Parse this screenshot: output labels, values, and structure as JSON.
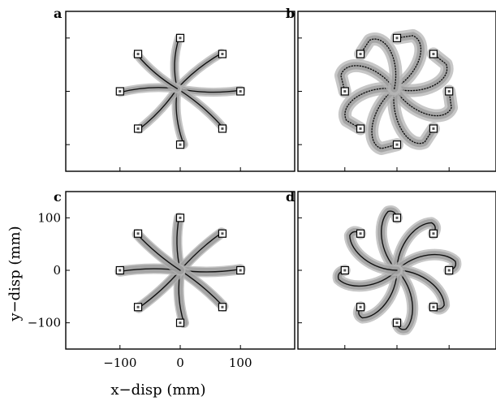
{
  "chart_data": [
    {
      "panel": "a",
      "type": "line",
      "variant": "baseline",
      "xlim": [
        -190,
        190
      ],
      "ylim": [
        -150,
        150
      ],
      "show_ticks": false,
      "center": [
        -5,
        5
      ],
      "targets": [
        {
          "x": 0,
          "y": 100
        },
        {
          "x": 70,
          "y": 70
        },
        {
          "x": 100,
          "y": 0
        },
        {
          "x": 70,
          "y": -70
        },
        {
          "x": 0,
          "y": -100
        },
        {
          "x": -70,
          "y": -70
        },
        {
          "x": -100,
          "y": 0
        },
        {
          "x": -70,
          "y": 70
        }
      ]
    },
    {
      "panel": "b",
      "type": "line",
      "variant": "force-field-initial",
      "xlim": [
        -190,
        190
      ],
      "ylim": [
        -150,
        150
      ],
      "show_ticks": false,
      "center": [
        -5,
        5
      ],
      "targets": [
        {
          "x": 0,
          "y": 100
        },
        {
          "x": 70,
          "y": 70
        },
        {
          "x": 100,
          "y": 0
        },
        {
          "x": 70,
          "y": -70
        },
        {
          "x": 0,
          "y": -100
        },
        {
          "x": -70,
          "y": -70
        },
        {
          "x": -100,
          "y": 0
        },
        {
          "x": -70,
          "y": 70
        }
      ]
    },
    {
      "panel": "c",
      "type": "line",
      "variant": "after-learning",
      "xlim": [
        -190,
        190
      ],
      "ylim": [
        -150,
        150
      ],
      "show_ticks": true,
      "xticks": [
        -100,
        0,
        100
      ],
      "yticks": [
        -100,
        0,
        100
      ],
      "xlabel": "x−disp (mm)",
      "ylabel": "y−disp (mm)",
      "center": [
        0,
        0
      ],
      "targets": [
        {
          "x": 0,
          "y": 100
        },
        {
          "x": 70,
          "y": 70
        },
        {
          "x": 100,
          "y": 0
        },
        {
          "x": 70,
          "y": -70
        },
        {
          "x": 0,
          "y": -100
        },
        {
          "x": -70,
          "y": -70
        },
        {
          "x": -100,
          "y": 0
        },
        {
          "x": -70,
          "y": 70
        }
      ]
    },
    {
      "panel": "d",
      "type": "line",
      "variant": "after-effect",
      "xlim": [
        -190,
        190
      ],
      "ylim": [
        -150,
        150
      ],
      "show_ticks": false,
      "center": [
        0,
        0
      ],
      "targets": [
        {
          "x": 0,
          "y": 100
        },
        {
          "x": 70,
          "y": 70
        },
        {
          "x": 100,
          "y": 0
        },
        {
          "x": 70,
          "y": -70
        },
        {
          "x": 0,
          "y": -100
        },
        {
          "x": -70,
          "y": -70
        },
        {
          "x": -100,
          "y": 0
        },
        {
          "x": -70,
          "y": 70
        }
      ]
    }
  ]
}
